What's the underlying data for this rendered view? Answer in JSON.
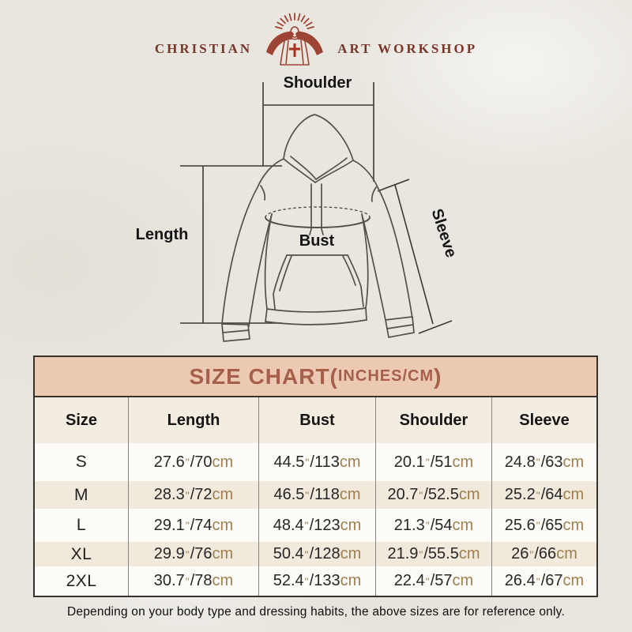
{
  "page": {
    "background": "#e9e6df"
  },
  "logo": {
    "left": "CHRISTIAN",
    "right": "ART WORKSHOP",
    "icon": "jesus-with-rays",
    "color": "#78352a",
    "cross_color": "#ae2e1f"
  },
  "diagram": {
    "shoulder_label": "Shoulder",
    "length_label": "Length",
    "bust_label": "Bust",
    "sleeve_label": "Sleeve"
  },
  "size_chart": {
    "title_prefix": "SIZE CHART(",
    "title_inner": "INCHES/CM",
    "title_suffix": ")",
    "columns": [
      "Size",
      "Length",
      "Bust",
      "Shoulder",
      "Sleeve"
    ],
    "measure_keys": [
      "length",
      "bust",
      "shoulder",
      "sleeve"
    ],
    "rows": [
      {
        "size": "S",
        "length": {
          "in": "27.6",
          "cm": "70"
        },
        "bust": {
          "in": "44.5",
          "cm": "113"
        },
        "shoulder": {
          "in": "20.1",
          "cm": "51"
        },
        "sleeve": {
          "in": "24.8",
          "cm": "63"
        }
      },
      {
        "size": "M",
        "length": {
          "in": "28.3",
          "cm": "72"
        },
        "bust": {
          "in": "46.5",
          "cm": "118"
        },
        "shoulder": {
          "in": "20.7",
          "cm": "52.5"
        },
        "sleeve": {
          "in": "25.2",
          "cm": "64"
        }
      },
      {
        "size": "L",
        "length": {
          "in": "29.1",
          "cm": "74"
        },
        "bust": {
          "in": "48.4",
          "cm": "123"
        },
        "shoulder": {
          "in": "21.3",
          "cm": "54"
        },
        "sleeve": {
          "in": "25.6",
          "cm": "65"
        }
      },
      {
        "size": "XL",
        "length": {
          "in": "29.9",
          "cm": "76"
        },
        "bust": {
          "in": "50.4",
          "cm": "128"
        },
        "shoulder": {
          "in": "21.9",
          "cm": "55.5"
        },
        "sleeve": {
          "in": "26",
          "cm": "66"
        }
      },
      {
        "size": "2XL",
        "length": {
          "in": "30.7",
          "cm": "78"
        },
        "bust": {
          "in": "52.4",
          "cm": "133"
        },
        "shoulder": {
          "in": "22.4",
          "cm": "57"
        },
        "sleeve": {
          "in": "26.4",
          "cm": "67"
        }
      }
    ],
    "inch_mark": "\"",
    "cm_unit": "cm",
    "colors": {
      "title_bg": "#ecc9b3",
      "title_text": "#a55f4a",
      "header_bg": "#f2ece1",
      "row_bg": "#fdfcf8",
      "alt_row_bg": "#f1e9dc",
      "unit_color": "#a07f4f"
    }
  },
  "footer": {
    "note": "Depending on your body type and dressing habits, the above sizes are for reference only."
  }
}
